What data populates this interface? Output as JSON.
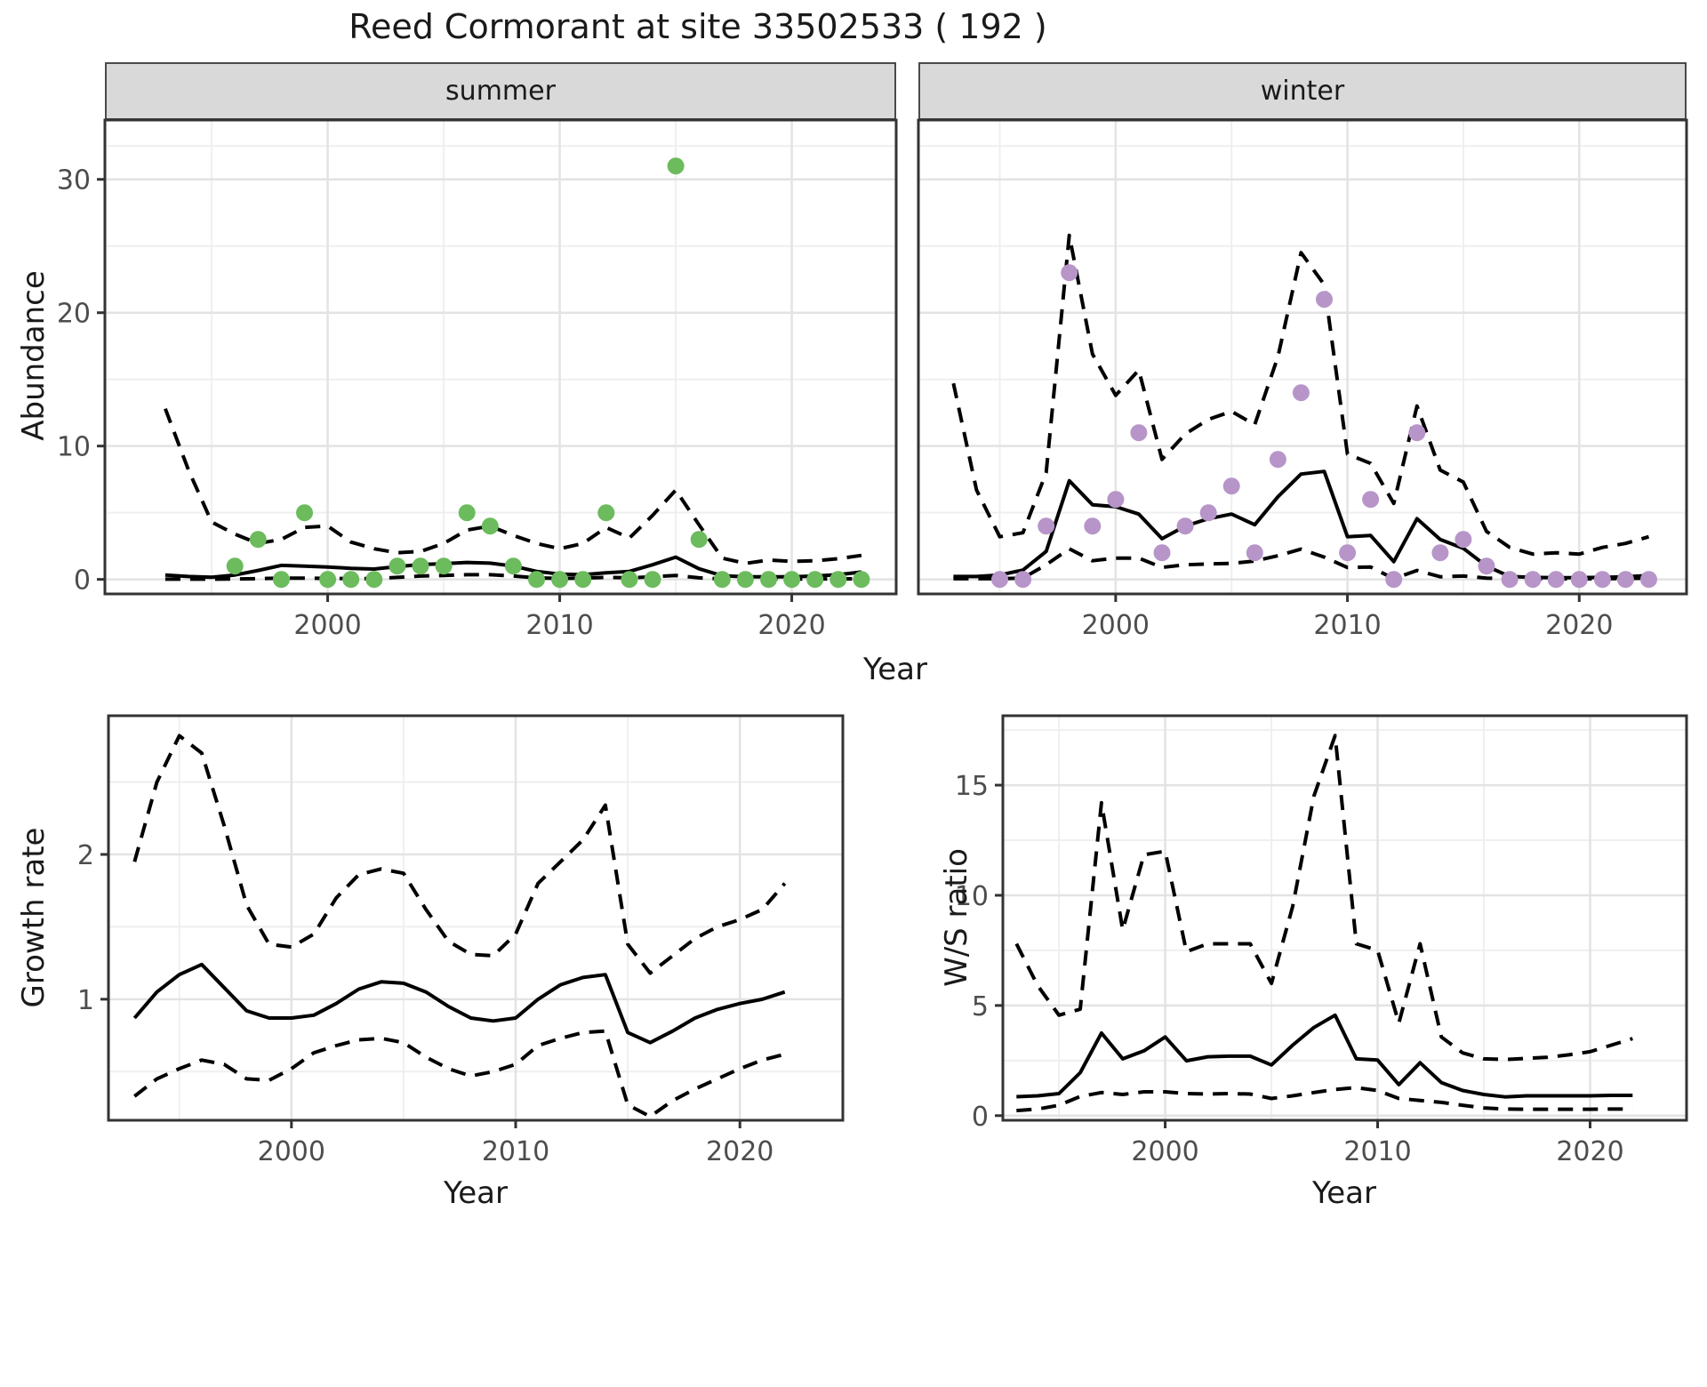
{
  "title": "Reed Cormorant at site 33502533 ( 192 )",
  "labels": {
    "x_axis": "Year",
    "y_top": "Abundance",
    "y_growth": "Growth rate",
    "y_ws": "W/S ratio"
  },
  "colors": {
    "summer_point": "#6cbb5d",
    "winter_point": "#b795c8",
    "line": "#000000",
    "strip_bg": "#d9d9d9",
    "grid_major": "#e3e3e3",
    "grid_minor": "#efefef",
    "panel_border": "#333333",
    "tick_text": "#4d4d4d"
  },
  "chart_data": {
    "type": "line",
    "title": "Reed Cormorant at site 33502533 ( 192 )",
    "facets": [
      "summer",
      "winter"
    ],
    "panels": [
      {
        "id": "abundance-summer",
        "facet_label": "summer",
        "xlim": [
          1990.4,
          2024.5
        ],
        "ylim": [
          -1.09,
          34.45
        ],
        "x_major": [
          2000,
          2010,
          2020
        ],
        "x_labels": [
          "2000",
          "2010",
          "2020"
        ],
        "x_minor": [
          1995,
          2005,
          2015
        ],
        "y_major": [
          0,
          10,
          20,
          30
        ],
        "y_labels": [
          "0",
          "10",
          "20",
          "30"
        ],
        "y_minor": [
          5,
          15,
          25,
          32.5
        ],
        "point_color": "#6cbb5d",
        "points": {
          "x": [
            1996,
            1997,
            1998,
            1999,
            2000,
            2001,
            2002,
            2003,
            2004,
            2005,
            2006,
            2007,
            2008,
            2009,
            2010,
            2011,
            2012,
            2013,
            2014,
            2015,
            2016,
            2017,
            2018,
            2019,
            2020,
            2021,
            2022,
            2023
          ],
          "y": [
            1,
            3,
            0,
            5,
            0,
            0,
            0,
            1,
            1,
            1,
            5,
            4,
            1,
            0,
            0,
            0,
            5,
            0,
            0,
            31,
            3,
            0,
            0,
            0,
            0,
            0,
            0,
            0
          ]
        },
        "fit": {
          "x": [
            1993,
            1994,
            1995,
            1996,
            1997,
            1998,
            1999,
            2000,
            2001,
            2002,
            2003,
            2004,
            2005,
            2006,
            2007,
            2008,
            2009,
            2010,
            2011,
            2012,
            2013,
            2014,
            2015,
            2016,
            2017,
            2018,
            2019,
            2020,
            2021,
            2022,
            2023
          ],
          "y": [
            0.33,
            0.22,
            0.16,
            0.33,
            0.67,
            1.05,
            1.0,
            0.93,
            0.83,
            0.78,
            0.96,
            1.11,
            1.18,
            1.27,
            1.22,
            1.0,
            0.6,
            0.4,
            0.35,
            0.5,
            0.6,
            1.1,
            1.67,
            0.8,
            0.28,
            0.2,
            0.2,
            0.2,
            0.25,
            0.35,
            0.55
          ]
        },
        "upper": {
          "x": [
            1993,
            1994,
            1995,
            1996,
            1997,
            1998,
            1999,
            2000,
            2001,
            2002,
            2003,
            2004,
            2005,
            2006,
            2007,
            2008,
            2009,
            2010,
            2011,
            2012,
            2013,
            2014,
            2015,
            2016,
            2017,
            2018,
            2019,
            2020,
            2021,
            2022,
            2023
          ],
          "y": [
            12.8,
            8.2,
            4.3,
            3.4,
            2.7,
            3.0,
            3.9,
            4.0,
            2.8,
            2.3,
            2.0,
            2.1,
            2.7,
            3.7,
            4.0,
            3.3,
            2.7,
            2.3,
            2.7,
            3.9,
            3.1,
            4.8,
            6.7,
            4.1,
            1.6,
            1.2,
            1.45,
            1.35,
            1.4,
            1.55,
            1.8
          ]
        },
        "lower": {
          "x": [
            1993,
            1994,
            1995,
            1996,
            1997,
            1998,
            1999,
            2000,
            2001,
            2002,
            2003,
            2004,
            2005,
            2006,
            2007,
            2008,
            2009,
            2010,
            2011,
            2012,
            2013,
            2014,
            2015,
            2016,
            2017,
            2018,
            2019,
            2020,
            2021,
            2022,
            2023
          ],
          "y": [
            0.02,
            0.02,
            0.02,
            0.03,
            0.06,
            0.1,
            0.1,
            0.08,
            0.06,
            0.06,
            0.15,
            0.25,
            0.3,
            0.35,
            0.35,
            0.25,
            0.12,
            0.08,
            0.1,
            0.15,
            0.12,
            0.2,
            0.3,
            0.12,
            0.04,
            0.03,
            0.03,
            0.03,
            0.03,
            0.04,
            0.05
          ]
        }
      },
      {
        "id": "abundance-winter",
        "facet_label": "winter",
        "xlim": [
          1991.49,
          2024.63
        ],
        "ylim": [
          -1.09,
          34.45
        ],
        "x_major": [
          2000,
          2010,
          2020
        ],
        "x_labels": [
          "2000",
          "2010",
          "2020"
        ],
        "x_minor": [
          1995,
          2005,
          2015
        ],
        "y_major": [
          0,
          10,
          20,
          30
        ],
        "y_minor": [
          5,
          15,
          25,
          32.5
        ],
        "point_color": "#b795c8",
        "points": {
          "x": [
            1995,
            1996,
            1997,
            1998,
            1999,
            2000,
            2001,
            2002,
            2003,
            2004,
            2005,
            2006,
            2007,
            2008,
            2009,
            2010,
            2011,
            2012,
            2013,
            2014,
            2015,
            2016,
            2017,
            2018,
            2019,
            2020,
            2021,
            2022,
            2023
          ],
          "y": [
            0,
            0,
            4,
            23,
            4,
            6,
            11,
            2,
            4,
            5,
            7,
            2,
            9,
            14,
            21,
            2,
            6,
            0,
            11,
            2,
            3,
            1,
            0,
            0,
            0,
            0,
            0,
            0,
            0
          ]
        },
        "fit": {
          "x": [
            1993,
            1994,
            1995,
            1996,
            1997,
            1998,
            1999,
            2000,
            2001,
            2002,
            2003,
            2004,
            2005,
            2006,
            2007,
            2008,
            2009,
            2010,
            2011,
            2012,
            2013,
            2014,
            2015,
            2016,
            2017,
            2018,
            2019,
            2020,
            2021,
            2022,
            2023
          ],
          "y": [
            0.22,
            0.22,
            0.33,
            0.7,
            2.1,
            7.4,
            5.6,
            5.45,
            4.9,
            3.05,
            4.0,
            4.55,
            4.9,
            4.1,
            6.2,
            7.9,
            8.1,
            3.2,
            3.3,
            1.33,
            4.55,
            3.0,
            2.33,
            1.0,
            0.22,
            0.15,
            0.13,
            0.13,
            0.15,
            0.2,
            0.3
          ]
        },
        "upper": {
          "x": [
            1993,
            1994,
            1995,
            1996,
            1997,
            1998,
            1999,
            2000,
            2001,
            2002,
            2003,
            2004,
            2005,
            2006,
            2007,
            2008,
            2009,
            2010,
            2011,
            2012,
            2013,
            2014,
            2015,
            2016,
            2017,
            2018,
            2019,
            2020,
            2021,
            2022,
            2023
          ],
          "y": [
            14.7,
            6.7,
            3.2,
            3.5,
            8.0,
            25.8,
            16.9,
            13.8,
            15.7,
            9.0,
            10.9,
            12.0,
            12.6,
            11.6,
            16.7,
            24.5,
            22.1,
            9.4,
            8.7,
            5.7,
            13.0,
            8.2,
            7.3,
            3.6,
            2.4,
            1.9,
            2.0,
            1.9,
            2.4,
            2.7,
            3.2
          ]
        },
        "lower": {
          "x": [
            1993,
            1994,
            1995,
            1996,
            1997,
            1998,
            1999,
            2000,
            2001,
            2002,
            2003,
            2004,
            2005,
            2006,
            2007,
            2008,
            2009,
            2010,
            2011,
            2012,
            2013,
            2014,
            2015,
            2016,
            2017,
            2018,
            2019,
            2020,
            2021,
            2022,
            2023
          ],
          "y": [
            0.05,
            0.05,
            0.05,
            0.1,
            1.1,
            2.3,
            1.4,
            1.6,
            1.6,
            0.9,
            1.1,
            1.16,
            1.2,
            1.38,
            1.78,
            2.27,
            1.67,
            0.89,
            0.93,
            0.05,
            0.67,
            0.2,
            0.25,
            0.1,
            0.05,
            0.04,
            0.04,
            0.04,
            0.05,
            0.07,
            0.1
          ]
        }
      },
      {
        "id": "growth-rate",
        "facet_label": "",
        "xlim": [
          1991.84,
          2024.59
        ],
        "ylim": [
          0.164,
          2.958
        ],
        "x_major": [
          2000,
          2010,
          2020
        ],
        "x_labels": [
          "2000",
          "2010",
          "2020"
        ],
        "x_minor": [
          1995,
          2005,
          2015
        ],
        "y_major": [
          1,
          2
        ],
        "y_labels": [
          "1",
          "2"
        ],
        "y_minor": [
          0.5,
          1.5,
          2.5
        ],
        "fit": {
          "x": [
            1993,
            1994,
            1995,
            1996,
            1997,
            1998,
            1999,
            2000,
            2001,
            2002,
            2003,
            2004,
            2005,
            2006,
            2007,
            2008,
            2009,
            2010,
            2011,
            2012,
            2013,
            2014,
            2015,
            2016,
            2017,
            2018,
            2019,
            2020,
            2021,
            2022
          ],
          "y": [
            0.87,
            1.05,
            1.17,
            1.24,
            1.08,
            0.92,
            0.87,
            0.87,
            0.89,
            0.97,
            1.07,
            1.12,
            1.11,
            1.05,
            0.95,
            0.87,
            0.85,
            0.87,
            1.0,
            1.1,
            1.15,
            1.17,
            0.77,
            0.7,
            0.78,
            0.87,
            0.93,
            0.97,
            1.0,
            1.05
          ]
        },
        "upper": {
          "x": [
            1993,
            1994,
            1995,
            1996,
            1997,
            1998,
            1999,
            2000,
            2001,
            2002,
            2003,
            2004,
            2005,
            2006,
            2007,
            2008,
            2009,
            2010,
            2011,
            2012,
            2013,
            2014,
            2015,
            2016,
            2017,
            2018,
            2019,
            2020,
            2021,
            2022
          ],
          "y": [
            1.95,
            2.5,
            2.82,
            2.7,
            2.2,
            1.65,
            1.38,
            1.36,
            1.45,
            1.7,
            1.86,
            1.9,
            1.87,
            1.62,
            1.4,
            1.31,
            1.3,
            1.45,
            1.8,
            1.95,
            2.1,
            2.34,
            1.38,
            1.18,
            1.3,
            1.42,
            1.5,
            1.55,
            1.62,
            1.8
          ]
        },
        "lower": {
          "x": [
            1993,
            1994,
            1995,
            1996,
            1997,
            1998,
            1999,
            2000,
            2001,
            2002,
            2003,
            2004,
            2005,
            2006,
            2007,
            2008,
            2009,
            2010,
            2011,
            2012,
            2013,
            2014,
            2015,
            2016,
            2017,
            2018,
            2019,
            2020,
            2021,
            2022
          ],
          "y": [
            0.33,
            0.45,
            0.52,
            0.58,
            0.55,
            0.45,
            0.44,
            0.52,
            0.63,
            0.68,
            0.72,
            0.73,
            0.7,
            0.6,
            0.52,
            0.47,
            0.5,
            0.55,
            0.68,
            0.73,
            0.77,
            0.78,
            0.27,
            0.19,
            0.3,
            0.38,
            0.45,
            0.52,
            0.58,
            0.62
          ]
        }
      },
      {
        "id": "ws-ratio",
        "facet_label": "",
        "xlim": [
          1992.36,
          2024.54
        ],
        "ylim": [
          -0.21,
          18.15
        ],
        "x_major": [
          2000,
          2010,
          2020
        ],
        "x_labels": [
          "2000",
          "2010",
          "2020"
        ],
        "x_minor": [
          1995,
          2005,
          2015
        ],
        "y_major": [
          0,
          5,
          10,
          15
        ],
        "y_labels": [
          "0",
          "5",
          "10",
          "15"
        ],
        "y_minor": [
          2.5,
          7.5,
          12.5,
          17.5
        ],
        "fit": {
          "x": [
            1993,
            1994,
            1995,
            1996,
            1997,
            1998,
            1999,
            2000,
            2001,
            2002,
            2003,
            2004,
            2005,
            2006,
            2007,
            2008,
            2009,
            2010,
            2011,
            2012,
            2013,
            2014,
            2015,
            2016,
            2017,
            2018,
            2019,
            2020,
            2021,
            2022
          ],
          "y": [
            0.86,
            0.9,
            1.0,
            1.95,
            3.75,
            2.58,
            2.94,
            3.57,
            2.49,
            2.67,
            2.7,
            2.7,
            2.3,
            3.2,
            4.0,
            4.56,
            2.58,
            2.52,
            1.41,
            2.4,
            1.5,
            1.14,
            0.96,
            0.85,
            0.9,
            0.9,
            0.9,
            0.9,
            0.92,
            0.92
          ]
        },
        "upper": {
          "x": [
            1993,
            1994,
            1995,
            1996,
            1997,
            1998,
            1999,
            2000,
            2001,
            2002,
            2003,
            2004,
            2005,
            2006,
            2007,
            2008,
            2009,
            2010,
            2011,
            2012,
            2013,
            2014,
            2015,
            2016,
            2017,
            2018,
            2019,
            2020,
            2021,
            2022
          ],
          "y": [
            7.8,
            5.9,
            4.56,
            4.83,
            14.2,
            8.43,
            11.84,
            12.0,
            7.44,
            7.8,
            7.8,
            7.8,
            6.0,
            9.5,
            14.5,
            17.25,
            7.8,
            7.5,
            4.2,
            7.8,
            3.57,
            2.85,
            2.58,
            2.55,
            2.6,
            2.65,
            2.76,
            2.9,
            3.2,
            3.5
          ]
        },
        "lower": {
          "x": [
            1993,
            1994,
            1995,
            1996,
            1997,
            1998,
            1999,
            2000,
            2001,
            2002,
            2003,
            2004,
            2005,
            2006,
            2007,
            2008,
            2009,
            2010,
            2011,
            2012,
            2013,
            2014,
            2015,
            2016,
            2017,
            2018,
            2019,
            2020,
            2021,
            2022
          ],
          "y": [
            0.23,
            0.3,
            0.47,
            0.87,
            1.05,
            0.96,
            1.08,
            1.08,
            1.0,
            0.98,
            1.0,
            0.98,
            0.78,
            0.9,
            1.05,
            1.19,
            1.27,
            1.14,
            0.78,
            0.69,
            0.6,
            0.47,
            0.35,
            0.3,
            0.29,
            0.29,
            0.29,
            0.29,
            0.3,
            0.3
          ]
        }
      }
    ]
  }
}
